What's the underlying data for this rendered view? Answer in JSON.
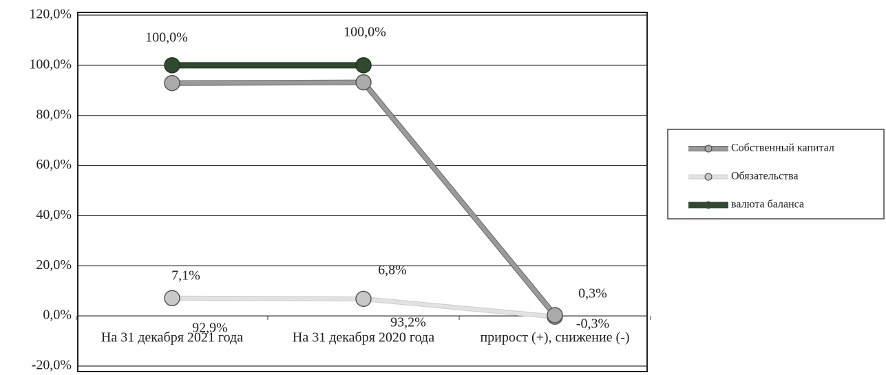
{
  "chart_data": {
    "type": "line",
    "categories": [
      "На 31 декабря 2021 года",
      "На 31 декабря 2020 года",
      "прирост (+), снижение (-)"
    ],
    "series": [
      {
        "name": "Собственный капитал",
        "color": "#9a9a9a",
        "values": [
          92.9,
          93.2,
          0.3
        ],
        "value_labels": [
          "92,9%",
          "93,2%",
          "0,3%"
        ]
      },
      {
        "name": "Обязательства",
        "color": "#e2e2e2",
        "values": [
          7.1,
          6.8,
          -0.3
        ],
        "value_labels": [
          "7,1%",
          "6,8%",
          "-0,3%"
        ]
      },
      {
        "name": "валюта баланса",
        "color": "#2f4a2f",
        "values": [
          100,
          100,
          null
        ],
        "value_labels": [
          "100,0%",
          "100,0%",
          null
        ]
      }
    ],
    "ylim": [
      -20,
      120
    ],
    "yticks": [
      {
        "value": -20,
        "label": "-20,0%"
      },
      {
        "value": 0,
        "label": "0,0%"
      },
      {
        "value": 20,
        "label": "20,0%"
      },
      {
        "value": 40,
        "label": "40,0%"
      },
      {
        "value": 60,
        "label": "60,0%"
      },
      {
        "value": 80,
        "label": "80,0%"
      },
      {
        "value": 100,
        "label": "100,0%"
      },
      {
        "value": 120,
        "label": "120,0%"
      }
    ],
    "grid": true,
    "legend": "right"
  }
}
